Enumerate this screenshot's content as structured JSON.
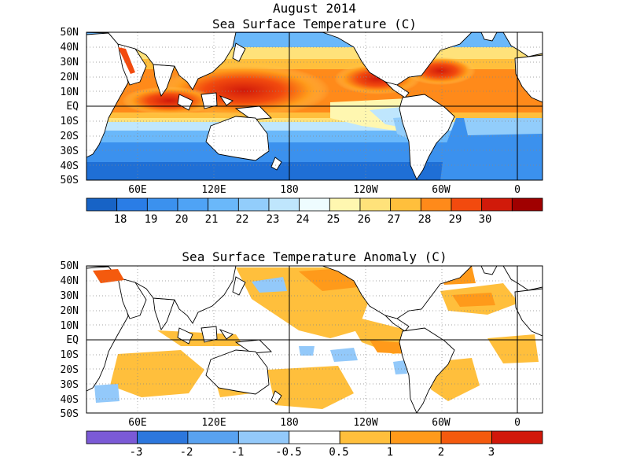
{
  "header": {
    "date": "August 2014",
    "sst_title": "Sea Surface Temperature (C)",
    "anom_title": "Sea Surface Temperature Anomaly (C)"
  },
  "axes": {
    "lat_labels": [
      "50N",
      "40N",
      "30N",
      "20N",
      "10N",
      "EQ",
      "10S",
      "20S",
      "30S",
      "40S",
      "50S"
    ],
    "lon_labels": [
      "60E",
      "120E",
      "180",
      "120W",
      "60W",
      "0"
    ]
  },
  "colorbars": {
    "sst": {
      "labels": [
        "18",
        "19",
        "20",
        "21",
        "22",
        "23",
        "24",
        "25",
        "26",
        "27",
        "28",
        "29",
        "30"
      ],
      "colors": [
        "#1763c6",
        "#2a7de6",
        "#3b91ee",
        "#4fa3f5",
        "#6ab8fa",
        "#92cdfb",
        "#bfe6fd",
        "#eefcff",
        "#fff7b0",
        "#ffe27a",
        "#ffbf3c",
        "#ff8a1a",
        "#f24a0e",
        "#d11a0a",
        "#a00000"
      ]
    },
    "anom": {
      "labels": [
        "-3",
        "-2",
        "-1",
        "-0.5",
        "0.5",
        "1",
        "2",
        "3"
      ],
      "colors": [
        "#7b5ad6",
        "#2c77dd",
        "#59a2f0",
        "#93c9fa",
        "#ffffff",
        "#ffbf3c",
        "#ff9a1a",
        "#f45a0e",
        "#d1180a"
      ]
    }
  },
  "map_colors": {
    "land": "#ffffff",
    "coast": "#000000",
    "grid": "#888888"
  }
}
